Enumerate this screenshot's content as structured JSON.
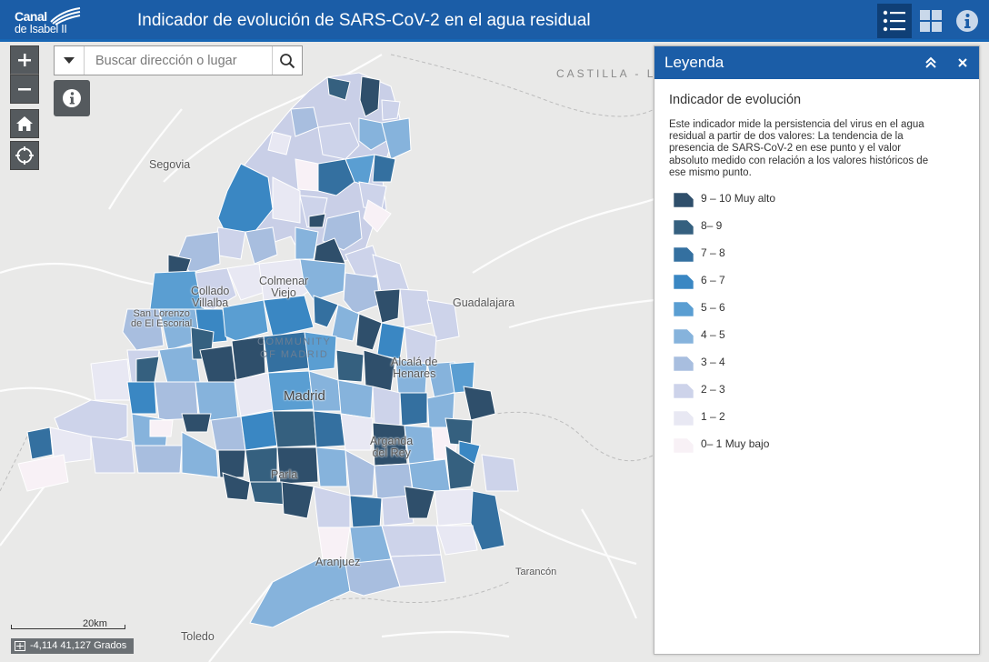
{
  "header": {
    "logo_line1": "Canal",
    "logo_line2": "de Isabel II",
    "title": "Indicador de evolución de SARS-CoV-2 en el agua residual"
  },
  "search": {
    "placeholder": "Buscar dirección o lugar"
  },
  "map": {
    "region_label": "CASTILLA - LA MANCHA",
    "labels": {
      "segovia": "Segovia",
      "guadalajara": "Guadalajara",
      "collado_1": "Collado",
      "collado_2": "Villalba",
      "colmenar_1": "Colmenar",
      "colmenar_2": "Viejo",
      "escorial_1": "San Lorenzo",
      "escorial_2": "de El Escorial",
      "alcala_1": "Alcalá de",
      "alcala_2": "Henares",
      "community_1": "COMMUNITY",
      "community_2": "OF MADRID",
      "madrid": "Madrid",
      "arganda_1": "Arganda",
      "arganda_2": "del Rey",
      "parla": "Parla",
      "aranjuez": "Aranjuez",
      "tarancon": "Tarancón",
      "toledo": "Toledo"
    },
    "scale_label": "20km",
    "coordinates": "-4,114 41,127 Grados"
  },
  "legend": {
    "title": "Leyenda",
    "layer_title": "Indicador de evolución",
    "description": "Este indicador mide la persistencia del virus en el agua residual a partir de dos valores: La tendencia de la presencia de SARS-CoV-2 en ese punto y el valor absoluto medido con relación a los valores históricos de ese mismo punto.",
    "items": [
      {
        "label": "9 – 10 Muy alto",
        "color": "#2f4f6b"
      },
      {
        "label": "8– 9",
        "color": "#35607f"
      },
      {
        "label": "7 – 8",
        "color": "#3470a0"
      },
      {
        "label": "6 – 7",
        "color": "#3a87c3"
      },
      {
        "label": "5 – 6",
        "color": "#5a9ed2"
      },
      {
        "label": "4 – 5",
        "color": "#86b3dc"
      },
      {
        "label": "3 – 4",
        "color": "#a8bedf"
      },
      {
        "label": "2 – 3",
        "color": "#cdd3ea"
      },
      {
        "label": "1 – 2",
        "color": "#e8e8f3"
      },
      {
        "label": "0– 1 Muy bajo",
        "color": "#f8f1f6"
      }
    ]
  },
  "colors": {
    "header": "#1b5da7",
    "tool_button": "#555a5e",
    "map_background": "#e9e9e8"
  }
}
